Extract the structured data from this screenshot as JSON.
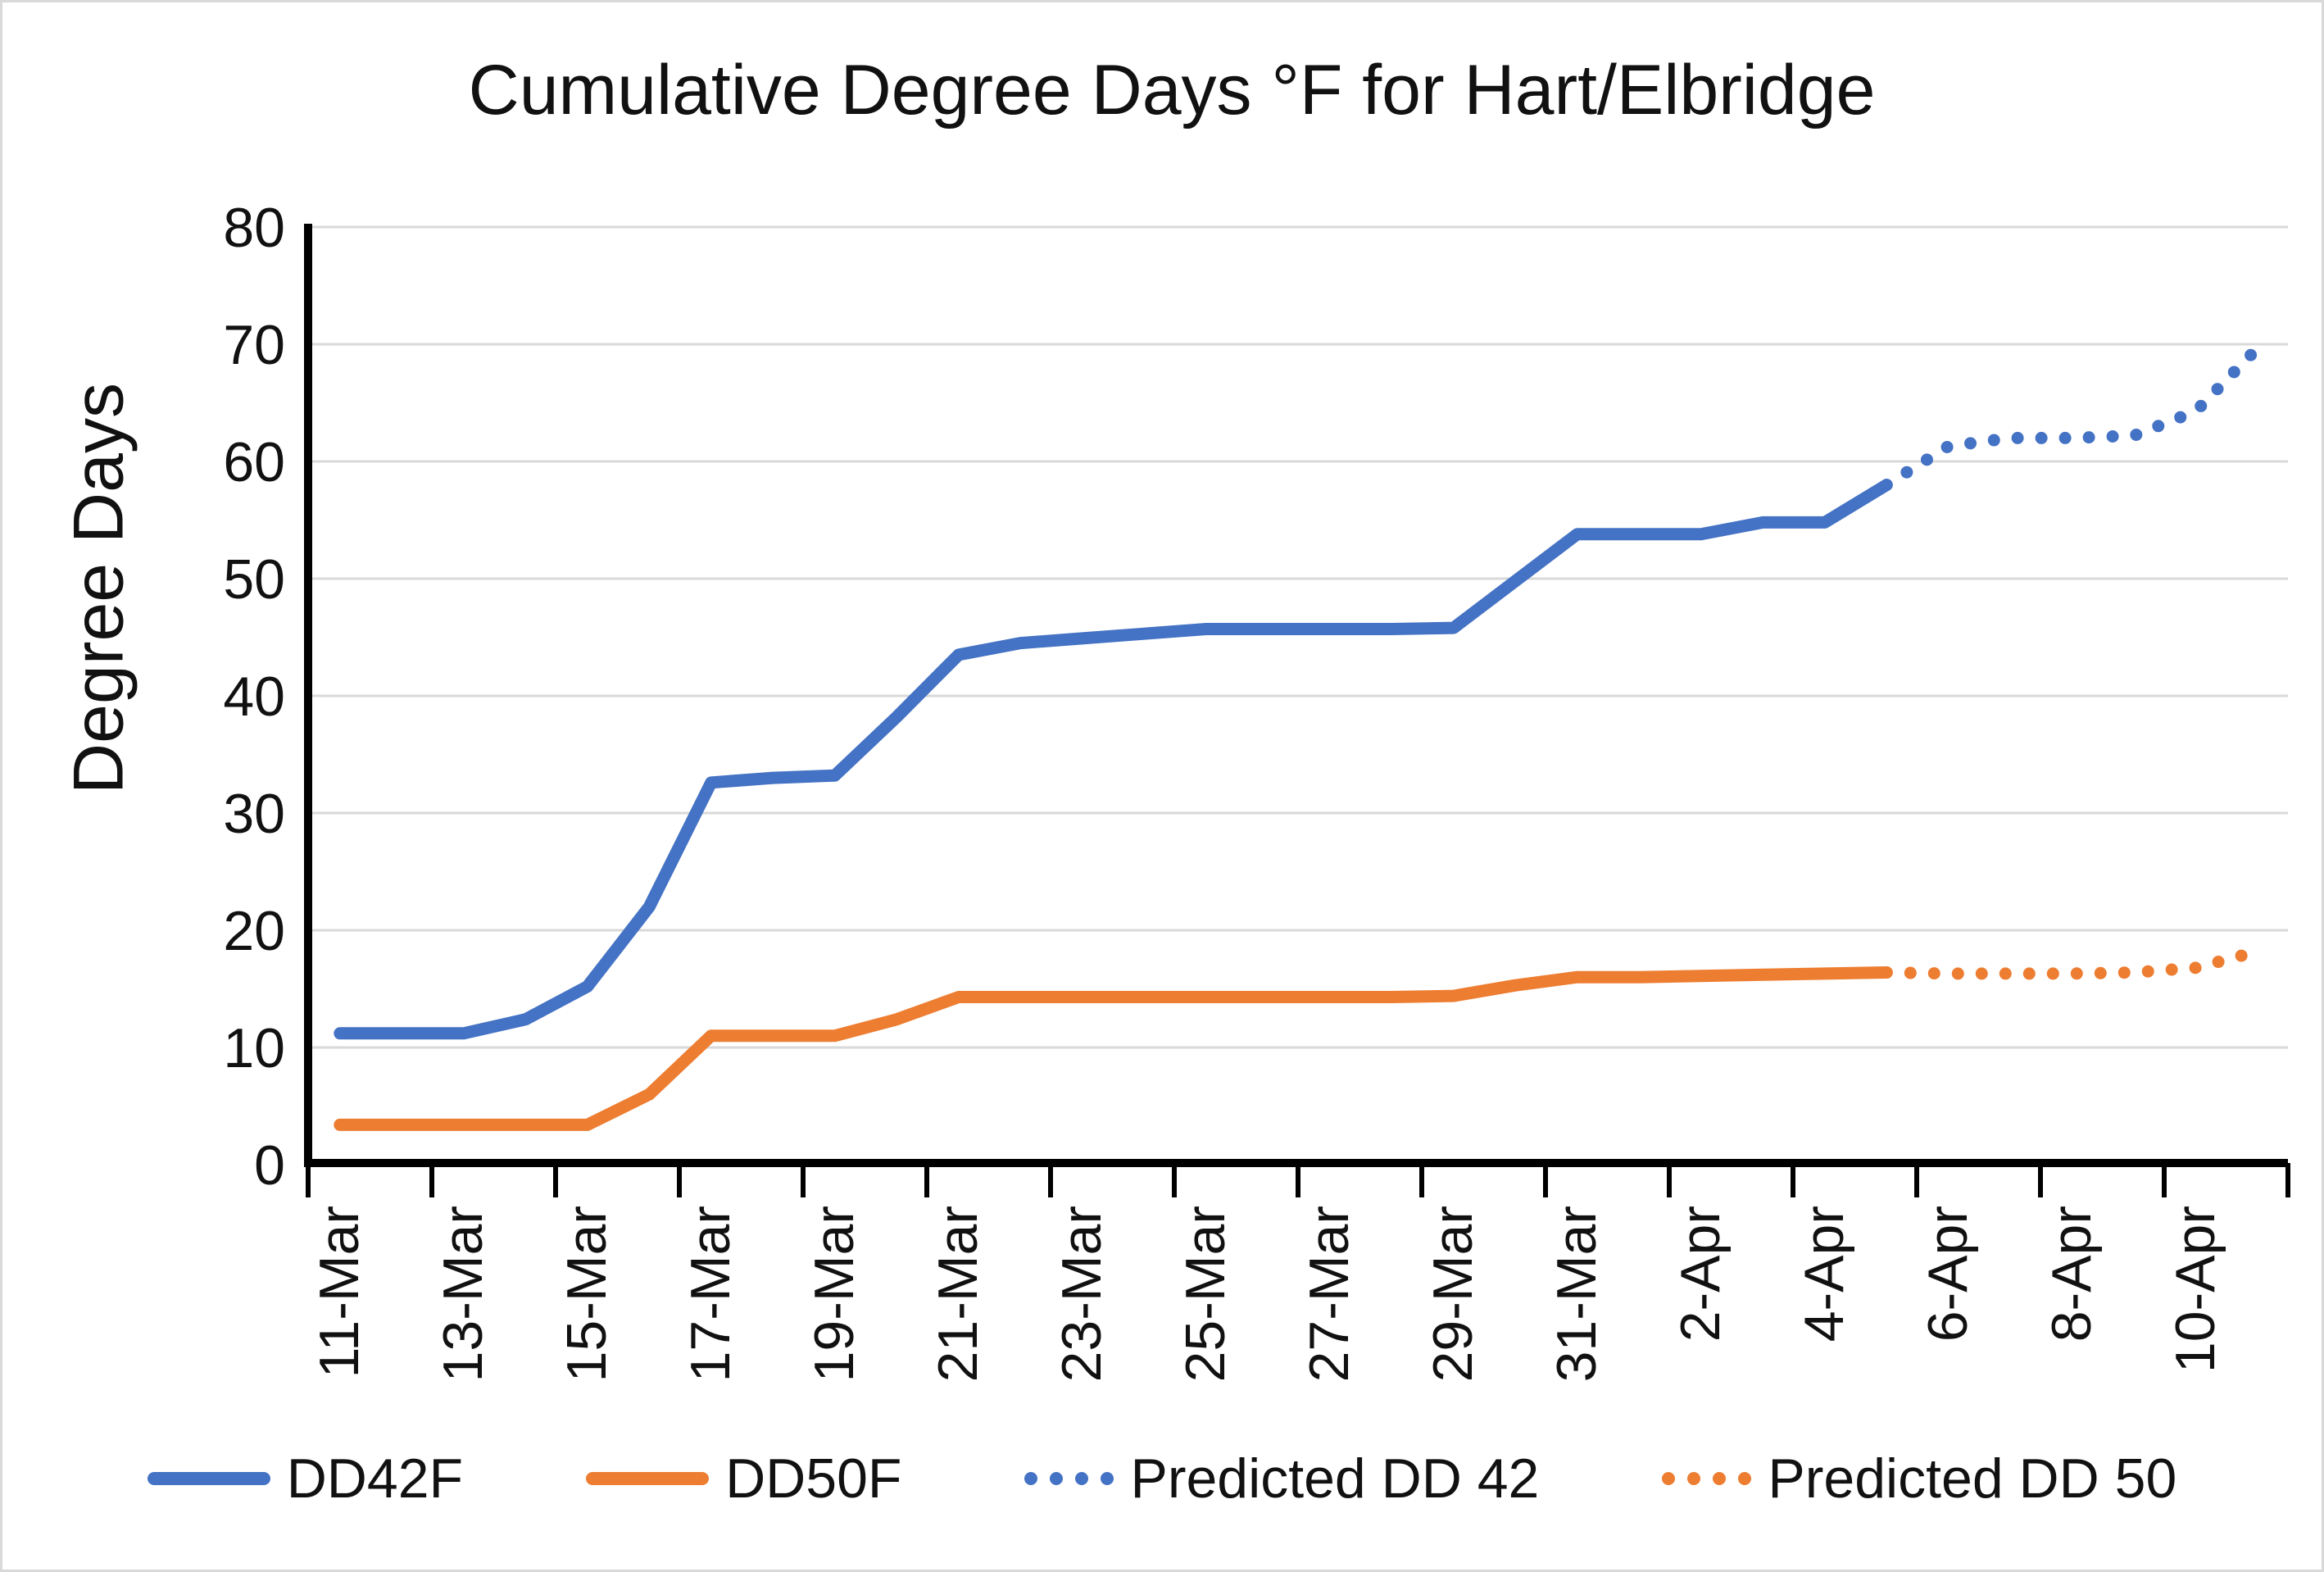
{
  "title": "Cumulative Degree Days °F for Hart/Elbridge",
  "y_axis_title": "Degree Days",
  "colors": {
    "blue": "#4472C4",
    "orange": "#ED7D31",
    "gridline": "#D9D9D9",
    "axis": "#000000",
    "text": "#111111",
    "border": "#D9D9D9"
  },
  "legend": {
    "items": [
      {
        "label": "DD42F",
        "color": "#4472C4",
        "style": "solid"
      },
      {
        "label": "DD50F",
        "color": "#ED7D31",
        "style": "solid"
      },
      {
        "label": "Predicted DD 42",
        "color": "#4472C4",
        "style": "dotted"
      },
      {
        "label": "Predicted DD 50",
        "color": "#ED7D31",
        "style": "dotted"
      }
    ]
  },
  "chart_data": {
    "type": "line",
    "title": "Cumulative Degree Days °F for Hart/Elbridge",
    "xlabel": "",
    "ylabel": "Degree Days",
    "ylim": [
      0,
      80
    ],
    "y_ticks": [
      0,
      10,
      20,
      30,
      40,
      50,
      60,
      70,
      80
    ],
    "grid": true,
    "legend_position": "bottom",
    "x_dates": [
      "11-Mar",
      "12-Mar",
      "13-Mar",
      "14-Mar",
      "15-Mar",
      "16-Mar",
      "17-Mar",
      "18-Mar",
      "19-Mar",
      "20-Mar",
      "21-Mar",
      "22-Mar",
      "23-Mar",
      "24-Mar",
      "25-Mar",
      "26-Mar",
      "27-Mar",
      "28-Mar",
      "29-Mar",
      "30-Mar",
      "31-Mar",
      "1-Apr",
      "2-Apr",
      "3-Apr",
      "4-Apr",
      "5-Apr",
      "6-Apr",
      "7-Apr",
      "8-Apr",
      "9-Apr",
      "10-Apr",
      "11-Apr"
    ],
    "x_tick_labels": [
      "11-Mar",
      "13-Mar",
      "15-Mar",
      "17-Mar",
      "19-Mar",
      "21-Mar",
      "23-Mar",
      "25-Mar",
      "27-Mar",
      "29-Mar",
      "31-Mar",
      "2-Apr",
      "4-Apr",
      "6-Apr",
      "8-Apr",
      "10-Apr"
    ],
    "series": [
      {
        "name": "DD42F",
        "style": "solid",
        "color": "#4472C4",
        "start_index": 0,
        "values": [
          11.2,
          11.2,
          11.2,
          12.4,
          15.2,
          22.0,
          32.6,
          33.0,
          33.2,
          38.2,
          43.5,
          44.5,
          44.9,
          45.3,
          45.7,
          45.7,
          45.7,
          45.7,
          45.8,
          49.8,
          53.8,
          53.8,
          53.8,
          54.8,
          54.8,
          58.0
        ]
      },
      {
        "name": "DD50F",
        "style": "solid",
        "color": "#ED7D31",
        "start_index": 0,
        "values": [
          3.4,
          3.4,
          3.4,
          3.4,
          3.4,
          6.0,
          11.0,
          11.0,
          11.0,
          12.4,
          14.3,
          14.3,
          14.3,
          14.3,
          14.3,
          14.3,
          14.3,
          14.3,
          14.4,
          15.3,
          16.0,
          16.0,
          16.1,
          16.2,
          16.3,
          16.4
        ]
      },
      {
        "name": "Predicted DD 42",
        "style": "dotted",
        "color": "#4472C4",
        "start_index": 25,
        "values": [
          58.0,
          61.3,
          62.0,
          62.0,
          62.2,
          64.3,
          69.7
        ]
      },
      {
        "name": "Predicted DD 50",
        "style": "dotted",
        "color": "#ED7D31",
        "start_index": 25,
        "values": [
          16.4,
          16.3,
          16.3,
          16.3,
          16.4,
          16.8,
          18.2
        ]
      }
    ]
  }
}
